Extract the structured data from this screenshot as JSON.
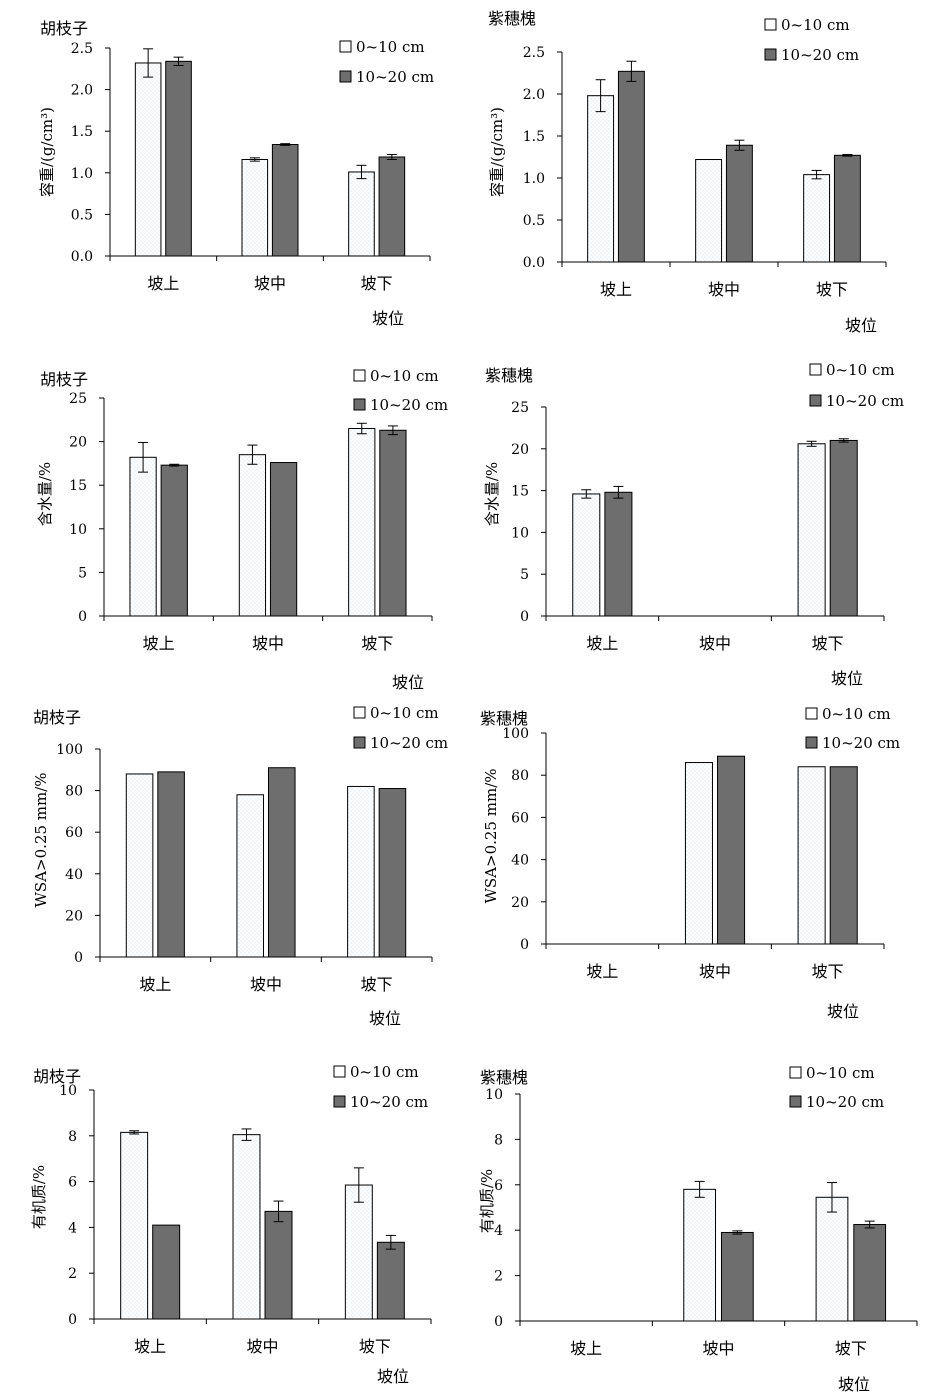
{
  "chart_data": [
    {
      "type": "bar",
      "title": "胡枝子",
      "ylabel": "容重/(g/cm³)",
      "xlabel": "坡位",
      "categories": [
        "坡上",
        "坡中",
        "坡下"
      ],
      "ylim": [
        0,
        2.5
      ],
      "yticks": [
        "0.0",
        "0.5",
        "1.0",
        "1.5",
        "2.0",
        "2.5"
      ],
      "legend": "top-right",
      "series": [
        {
          "name": "0~10 cm",
          "values": [
            2.32,
            1.16,
            1.01
          ],
          "errors": [
            0.17,
            0.02,
            0.08
          ]
        },
        {
          "name": "10~20 cm",
          "values": [
            2.34,
            1.34,
            1.19
          ],
          "errors": [
            0.05,
            0.01,
            0.03
          ]
        }
      ]
    },
    {
      "type": "bar",
      "title": "紫穗槐",
      "ylabel": "容重/(g/cm³)",
      "xlabel": "坡位",
      "categories": [
        "坡上",
        "坡中",
        "坡下"
      ],
      "ylim": [
        0,
        2.5
      ],
      "yticks": [
        "0.0",
        "0.5",
        "1.0",
        "1.5",
        "2.0",
        "2.5"
      ],
      "legend": "top-right",
      "series": [
        {
          "name": "0~10 cm",
          "values": [
            1.98,
            1.22,
            1.04
          ],
          "errors": [
            0.19,
            0,
            0.05
          ]
        },
        {
          "name": "10~20 cm",
          "values": [
            2.27,
            1.39,
            1.27
          ],
          "errors": [
            0.12,
            0.06,
            0.01
          ]
        }
      ]
    },
    {
      "type": "bar",
      "title": "胡枝子",
      "ylabel": "含水量/%",
      "xlabel": "坡位",
      "categories": [
        "坡上",
        "坡中",
        "坡下"
      ],
      "ylim": [
        0,
        25
      ],
      "yticks": [
        "0",
        "5",
        "10",
        "15",
        "20",
        "25"
      ],
      "legend": "top-right",
      "series": [
        {
          "name": "0~10 cm",
          "values": [
            18.2,
            18.5,
            21.5
          ],
          "errors": [
            1.7,
            1.1,
            0.6
          ]
        },
        {
          "name": "10~20 cm",
          "values": [
            17.3,
            17.6,
            21.3
          ],
          "errors": [
            0.1,
            0,
            0.5
          ]
        }
      ]
    },
    {
      "type": "bar",
      "title": "紫穗槐",
      "ylabel": "含水量/%",
      "xlabel": "坡位",
      "categories": [
        "坡上",
        "坡中",
        "坡下"
      ],
      "ylim": [
        0,
        25
      ],
      "yticks": [
        "0",
        "5",
        "10",
        "15",
        "20",
        "25"
      ],
      "legend": "top-right",
      "series": [
        {
          "name": "0~10 cm",
          "values": [
            14.6,
            null,
            20.6
          ],
          "errors": [
            0.5,
            0,
            0.3
          ]
        },
        {
          "name": "10~20 cm",
          "values": [
            14.8,
            null,
            21.0
          ],
          "errors": [
            0.7,
            0,
            0.2
          ]
        }
      ]
    },
    {
      "type": "bar",
      "title": "胡枝子",
      "ylabel": "WSA>0.25 mm/%",
      "xlabel": "坡位",
      "categories": [
        "坡上",
        "坡中",
        "坡下"
      ],
      "ylim": [
        0,
        100
      ],
      "yticks": [
        "0",
        "20",
        "40",
        "60",
        "80",
        "100"
      ],
      "legend": "top-right",
      "series": [
        {
          "name": "0~10 cm",
          "values": [
            88,
            78,
            82
          ],
          "errors": [
            0,
            0,
            0
          ]
        },
        {
          "name": "10~20 cm",
          "values": [
            89,
            91,
            81
          ],
          "errors": [
            0,
            0,
            0
          ]
        }
      ]
    },
    {
      "type": "bar",
      "title": "紫穗槐",
      "ylabel": "WSA>0.25 mm/%",
      "xlabel": "坡位",
      "categories": [
        "坡上",
        "坡中",
        "坡下"
      ],
      "ylim": [
        0,
        100
      ],
      "yticks": [
        "0",
        "20",
        "40",
        "60",
        "80",
        "100"
      ],
      "legend": "top-right",
      "series": [
        {
          "name": "0~10 cm",
          "values": [
            null,
            86,
            84
          ],
          "errors": [
            0,
            0,
            0
          ]
        },
        {
          "name": "10~20 cm",
          "values": [
            null,
            89,
            84
          ],
          "errors": [
            0,
            0,
            0
          ]
        }
      ]
    },
    {
      "type": "bar",
      "title": "胡枝子",
      "ylabel": "有机质/%",
      "xlabel": "坡位",
      "categories": [
        "坡上",
        "坡中",
        "坡下"
      ],
      "ylim": [
        0,
        10
      ],
      "yticks": [
        "0",
        "2",
        "4",
        "6",
        "8",
        "10"
      ],
      "legend": "top-right",
      "series": [
        {
          "name": "0~10 cm",
          "values": [
            8.15,
            8.05,
            5.85
          ],
          "errors": [
            0.07,
            0.25,
            0.75
          ]
        },
        {
          "name": "10~20 cm",
          "values": [
            4.1,
            4.7,
            3.35
          ],
          "errors": [
            0,
            0.45,
            0.3
          ]
        }
      ]
    },
    {
      "type": "bar",
      "title": "紫穗槐",
      "ylabel": "有机质/%",
      "xlabel": "坡位",
      "categories": [
        "坡上",
        "坡中",
        "坡下"
      ],
      "ylim": [
        0,
        10
      ],
      "yticks": [
        "0",
        "2",
        "4",
        "6",
        "8",
        "10"
      ],
      "legend": "top-right",
      "series": [
        {
          "name": "0~10 cm",
          "values": [
            null,
            5.8,
            5.45
          ],
          "errors": [
            0,
            0.35,
            0.65
          ]
        },
        {
          "name": "10~20 cm",
          "values": [
            null,
            3.9,
            4.25
          ],
          "errors": [
            0,
            0.07,
            0.15
          ]
        }
      ]
    }
  ],
  "colors": {
    "series_light_fill": "#ffffff",
    "series_light_dots": "#b9d2e8",
    "series_dark_fill": "#6e6e6e",
    "axis": "#000000"
  }
}
